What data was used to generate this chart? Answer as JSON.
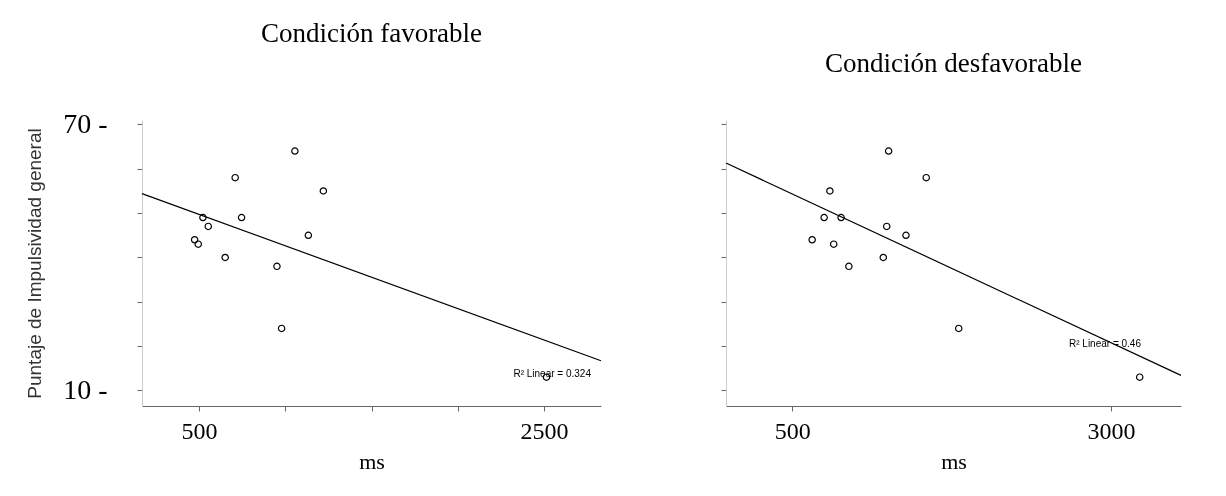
{
  "chart_data": [
    {
      "type": "scatter",
      "title": "Condición favorable",
      "xlabel": "ms",
      "ylabel": "Puntaje de Impulsividad general",
      "xlim": [
        170,
        2830
      ],
      "ylim": [
        6.5,
        71
      ],
      "xticks": [
        500,
        {
          "value": 1000,
          "label": null
        },
        {
          "value": 1500,
          "label": null
        },
        {
          "value": 2000,
          "label": null
        },
        2500
      ],
      "yticks": [
        {
          "value": 70,
          "label": "70 -"
        },
        {
          "value": 60,
          "label": null
        },
        {
          "value": 50,
          "label": null
        },
        {
          "value": 40,
          "label": null
        },
        {
          "value": 30,
          "label": null
        },
        {
          "value": 20,
          "label": null
        },
        {
          "value": 10,
          "label": "10 -"
        }
      ],
      "series": [
        {
          "color": "#000000",
          "marker": "circle",
          "x": [
            1056,
            710,
            1221,
            523,
            747,
            554,
            1134,
            475,
            496,
            652,
            952,
            979,
            2514
          ],
          "values": [
            64,
            58,
            55,
            49,
            49,
            47,
            45,
            44,
            43,
            40,
            38,
            24,
            13
          ]
        },
        {
          "type": "line",
          "marker": "none",
          "color": "#000000",
          "x": [
            170,
            2830
          ],
          "values": [
            54.4,
            16.7
          ]
        }
      ],
      "annotations": [
        "R² Linear = 0.324"
      ]
    },
    {
      "type": "scatter",
      "title": "Condición desfavorable",
      "xlabel": "ms",
      "tick_labels": "x",
      "xlim": [
        -20,
        3550
      ],
      "ylim": [
        6.5,
        71
      ],
      "xticks": [
        500,
        3000
      ],
      "yticks": [
        {
          "value": 70,
          "label": null
        },
        {
          "value": 60,
          "label": null
        },
        {
          "value": 50,
          "label": null
        },
        {
          "value": 40,
          "label": null
        },
        {
          "value": 30,
          "label": null
        },
        {
          "value": 20,
          "label": null
        },
        {
          "value": 10,
          "label": null
        }
      ],
      "series": [
        {
          "color": "#000000",
          "marker": "circle",
          "x": [
            1256,
            1551,
            795,
            750,
            883,
            1241,
            1392,
            656,
            825,
            1214,
            944,
            1806,
            3226
          ],
          "values": [
            64,
            58,
            55,
            49,
            49,
            47,
            45,
            44,
            43,
            40,
            38,
            24,
            13
          ]
        },
        {
          "type": "line",
          "marker": "none",
          "color": "#000000",
          "x": [
            -20,
            3550
          ],
          "values": [
            61.3,
            13.4
          ]
        }
      ],
      "annotations": [
        "R² Linear = 0.46"
      ]
    }
  ]
}
